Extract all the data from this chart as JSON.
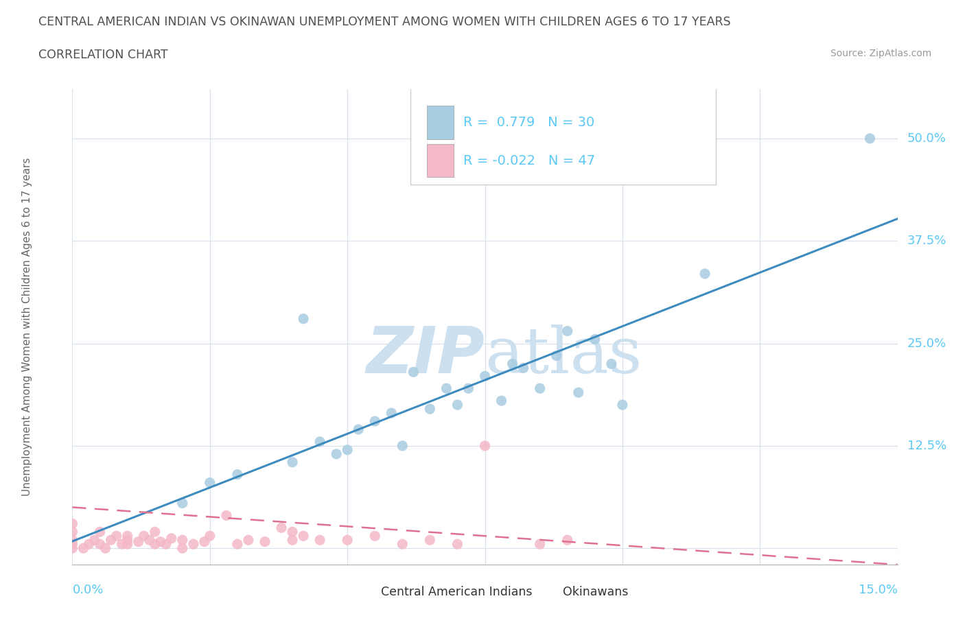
{
  "title_line1": "CENTRAL AMERICAN INDIAN VS OKINAWAN UNEMPLOYMENT AMONG WOMEN WITH CHILDREN AGES 6 TO 17 YEARS",
  "title_line2": "CORRELATION CHART",
  "source_text": "Source: ZipAtlas.com",
  "xlabel_bottom_left": "0.0%",
  "xlabel_bottom_right": "15.0%",
  "ylabel": "Unemployment Among Women with Children Ages 6 to 17 years",
  "right_ytick_labels": [
    "50.0%",
    "37.5%",
    "25.0%",
    "12.5%"
  ],
  "right_ytick_values": [
    0.5,
    0.375,
    0.25,
    0.125
  ],
  "legend_blue_text": "R =  0.779   N = 30",
  "legend_pink_text": "R = -0.022   N = 47",
  "legend_label_blue": "Central American Indians",
  "legend_label_pink": "Okinawans",
  "blue_color": "#a8cce0",
  "pink_color": "#f4b8c8",
  "trendline_blue_color": "#3d8bbf",
  "trendline_pink_color": "#e07090",
  "watermark_color": "#cce0f0",
  "blue_scatter_x": [
    0.02,
    0.025,
    0.03,
    0.04,
    0.042,
    0.045,
    0.048,
    0.05,
    0.052,
    0.055,
    0.058,
    0.06,
    0.062,
    0.065,
    0.068,
    0.07,
    0.072,
    0.075,
    0.078,
    0.08,
    0.082,
    0.085,
    0.088,
    0.09,
    0.092,
    0.095,
    0.098,
    0.1,
    0.115,
    0.145
  ],
  "blue_scatter_y": [
    0.055,
    0.08,
    0.09,
    0.105,
    0.28,
    0.13,
    0.115,
    0.12,
    0.145,
    0.155,
    0.165,
    0.125,
    0.215,
    0.17,
    0.195,
    0.175,
    0.195,
    0.21,
    0.18,
    0.225,
    0.22,
    0.195,
    0.235,
    0.265,
    0.19,
    0.255,
    0.225,
    0.175,
    0.335,
    0.5
  ],
  "pink_scatter_x": [
    0.0,
    0.0,
    0.0,
    0.0,
    0.0,
    0.002,
    0.003,
    0.004,
    0.005,
    0.005,
    0.006,
    0.007,
    0.008,
    0.009,
    0.01,
    0.01,
    0.01,
    0.012,
    0.013,
    0.014,
    0.015,
    0.015,
    0.016,
    0.017,
    0.018,
    0.02,
    0.02,
    0.022,
    0.024,
    0.025,
    0.028,
    0.03,
    0.032,
    0.035,
    0.038,
    0.04,
    0.04,
    0.042,
    0.045,
    0.05,
    0.055,
    0.06,
    0.065,
    0.07,
    0.075,
    0.085,
    0.09
  ],
  "pink_scatter_y": [
    0.0,
    0.005,
    0.01,
    0.02,
    0.03,
    0.0,
    0.005,
    0.01,
    0.005,
    0.02,
    0.0,
    0.01,
    0.015,
    0.005,
    0.005,
    0.01,
    0.015,
    0.008,
    0.015,
    0.01,
    0.005,
    0.02,
    0.008,
    0.005,
    0.012,
    0.0,
    0.01,
    0.005,
    0.008,
    0.015,
    0.04,
    0.005,
    0.01,
    0.008,
    0.025,
    0.01,
    0.02,
    0.015,
    0.01,
    0.01,
    0.015,
    0.005,
    0.01,
    0.005,
    0.125,
    0.005,
    0.01
  ],
  "xmin": 0.0,
  "xmax": 0.15,
  "ymin": -0.02,
  "ymax": 0.56,
  "grid_color": "#d8e0ec",
  "background_color": "#ffffff",
  "title_color": "#505050",
  "right_label_color": "#5bc8f5",
  "legend_text_color": "#5bc8f5",
  "grid_yticks": [
    0.0,
    0.125,
    0.25,
    0.375,
    0.5
  ],
  "grid_xticks": [
    0.0,
    0.025,
    0.05,
    0.075,
    0.1,
    0.125,
    0.15
  ]
}
